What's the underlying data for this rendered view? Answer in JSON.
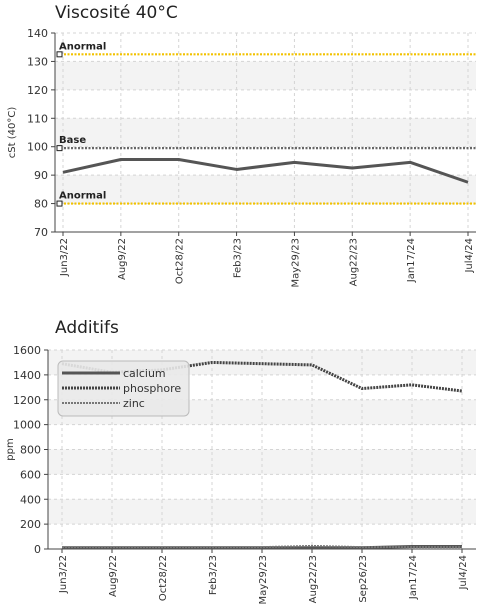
{
  "chart_data": [
    {
      "type": "line",
      "title": "Viscosité 40°C",
      "xlabel": "",
      "ylabel": "cSt (40°C)",
      "ylim": [
        70,
        140
      ],
      "yticks": [
        70,
        80,
        90,
        100,
        110,
        120,
        130,
        140
      ],
      "grid": true,
      "legend": "none",
      "categories": [
        "Jun3/22",
        "Aug9/22",
        "Oct28/22",
        "Feb3/23",
        "May29/23",
        "Aug22/23",
        "Jan17/24",
        "Jul4/24"
      ],
      "series": [
        {
          "name": "",
          "values": [
            91,
            95.5,
            95.5,
            92,
            94.5,
            92.5,
            94.5,
            87.5
          ],
          "color": "#555555"
        }
      ],
      "reference_lines": [
        {
          "label": "Anormal",
          "value": 132.5,
          "color": "#f2c200"
        },
        {
          "label": "Base",
          "value": 99.5,
          "color": "#666666"
        },
        {
          "label": "Anormal",
          "value": 80,
          "color": "#f2c200"
        }
      ]
    },
    {
      "type": "line",
      "title": "Additifs",
      "xlabel": "",
      "ylabel": "ppm",
      "ylim": [
        0,
        1600
      ],
      "yticks": [
        0,
        200,
        400,
        600,
        800,
        1000,
        1200,
        1400,
        1600
      ],
      "grid": true,
      "legend": "top-left",
      "categories": [
        "Jun3/22",
        "Aug9/22",
        "Oct28/22",
        "Feb3/23",
        "May29/23",
        "Aug22/23",
        "Sep26/23",
        "Jan17/24",
        "Jul4/24"
      ],
      "series": [
        {
          "name": "calcium",
          "values": [
            10,
            10,
            10,
            10,
            10,
            10,
            10,
            20,
            20
          ],
          "color": "#555555"
        },
        {
          "name": "phosphore",
          "values": [
            1490,
            1420,
            1440,
            1500,
            1490,
            1480,
            1290,
            1320,
            1270
          ],
          "color": "#444444"
        },
        {
          "name": "zinc",
          "values": [
            15,
            15,
            15,
            15,
            15,
            25,
            15,
            15,
            15
          ],
          "color": "#777777"
        }
      ]
    }
  ]
}
